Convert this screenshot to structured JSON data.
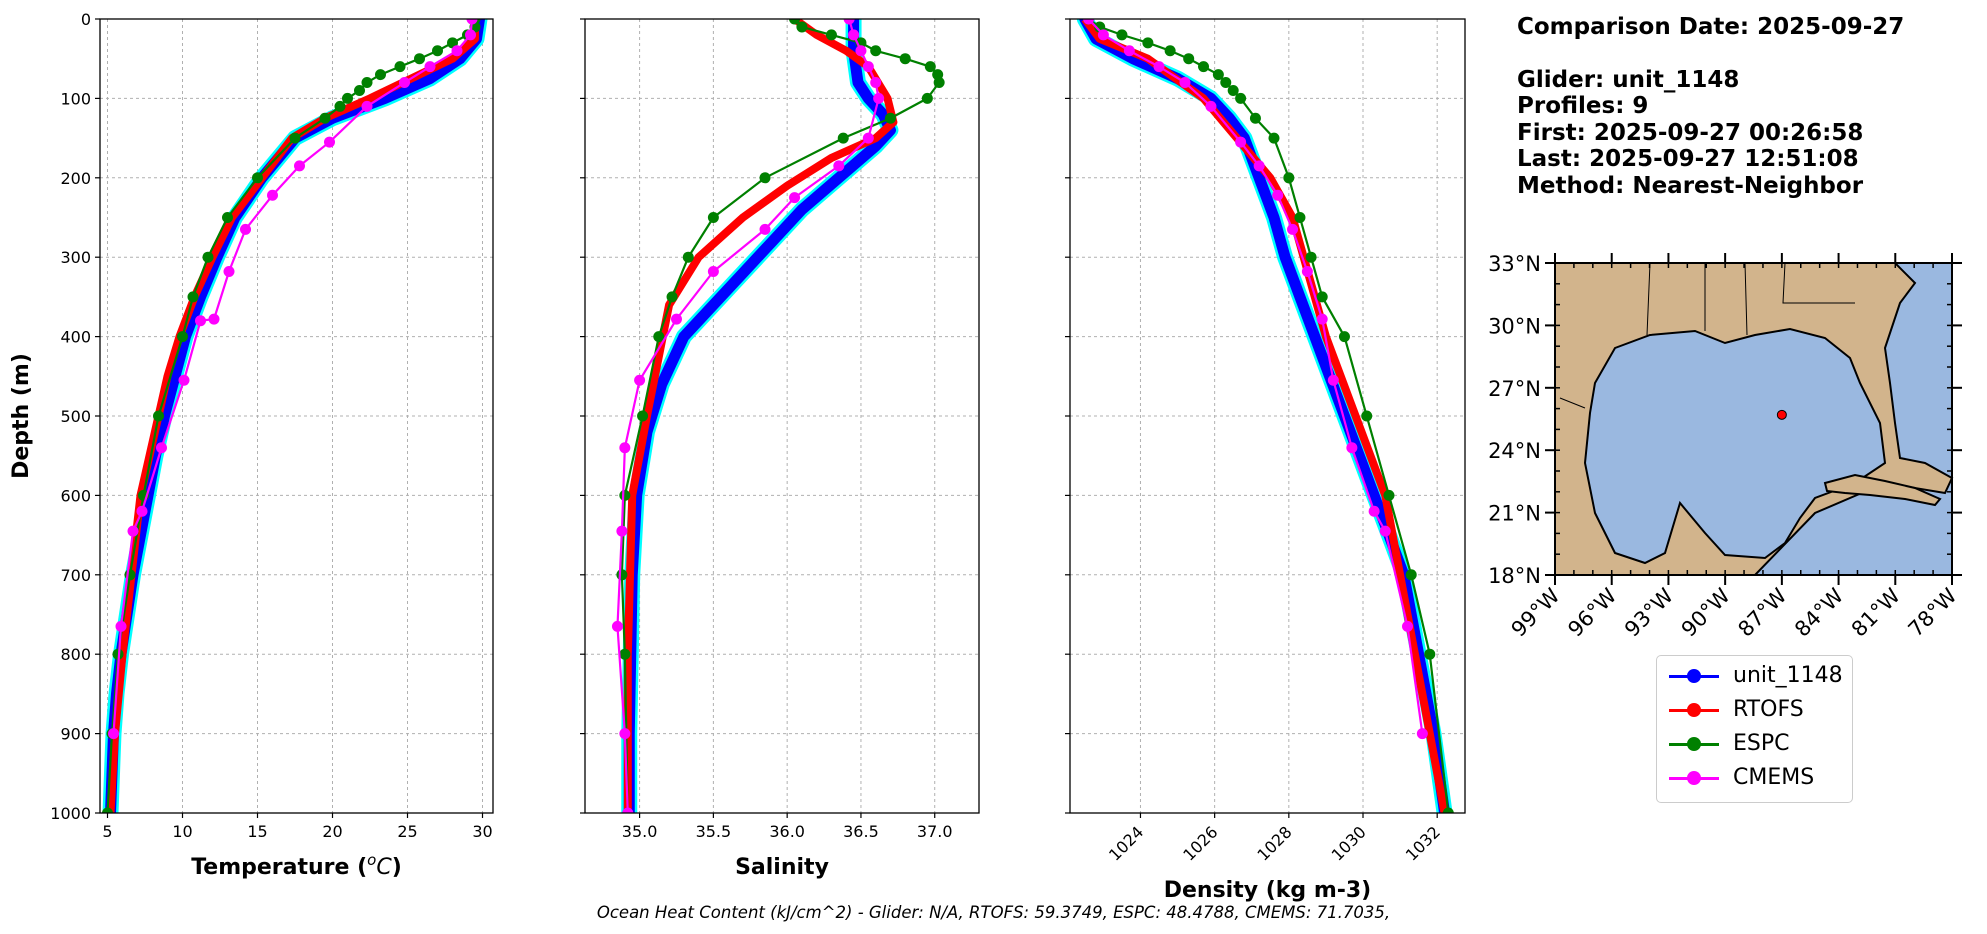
{
  "info": {
    "comparison_date": "Comparison Date: 2025-09-27",
    "glider": "Glider: unit_1148",
    "profiles": "Profiles: 9",
    "first": "First: 2025-09-27 00:26:58",
    "last": "Last: 2025-09-27 12:51:08",
    "method": "Method: Nearest-Neighbor"
  },
  "footer": "Ocean Heat Content (kJ/cm^2) - Glider: N/A,  RTOFS: 59.3749,  ESPC: 48.4788,  CMEMS: 71.7035,",
  "legend": [
    {
      "label": "unit_1148",
      "color": "#0000ff"
    },
    {
      "label": "RTOFS",
      "color": "#ff0000"
    },
    {
      "label": "ESPC",
      "color": "#008000"
    },
    {
      "label": "CMEMS",
      "color": "#ff00ff"
    }
  ],
  "colors": {
    "glider_shadow": "#00ffff",
    "land": "#d2b48c",
    "ocean": "#9ab8e0"
  },
  "chart_data": [
    {
      "type": "line",
      "xlabel": "Temperature (°C)",
      "ylabel": "Depth (m)",
      "ylim": [
        0,
        1000
      ],
      "xlim": [
        4.5,
        30.7
      ],
      "xticks": [
        5,
        10,
        15,
        20,
        25,
        30
      ],
      "yticks": [
        0,
        100,
        200,
        300,
        400,
        500,
        600,
        700,
        800,
        900,
        1000
      ],
      "y_inverted": true,
      "grid": true,
      "series": [
        {
          "name": "unit_1148",
          "x": [
            29.8,
            29.6,
            28.5,
            26.5,
            23.5,
            20,
            17.5,
            15.3,
            13.5,
            12.3,
            11.2,
            10.2,
            9.5,
            8.8,
            8.2,
            7.7,
            7.2,
            6.7,
            6.3,
            5.9,
            5.6,
            5.4,
            5.2
          ],
          "y": [
            0,
            25,
            50,
            75,
            100,
            125,
            150,
            200,
            250,
            300,
            350,
            400,
            450,
            500,
            550,
            600,
            650,
            700,
            750,
            800,
            850,
            900,
            1000
          ]
        },
        {
          "name": "RTOFS",
          "x": [
            29.5,
            29.5,
            28,
            22.5,
            19.5,
            17.3,
            15.3,
            13.3,
            12,
            10.8,
            9.8,
            9,
            8.4,
            7.8,
            7.2,
            6.6,
            6,
            5.5,
            5.2
          ],
          "y": [
            0,
            25,
            50,
            100,
            125,
            150,
            200,
            250,
            300,
            350,
            400,
            450,
            500,
            550,
            600,
            700,
            800,
            900,
            1000
          ]
        },
        {
          "name": "ESPC",
          "x": [
            29.5,
            29.5,
            29,
            28,
            27,
            25.8,
            24.5,
            23.2,
            22.3,
            21.8,
            21,
            20.5,
            19.5,
            17.5,
            15,
            13,
            11.7,
            10.7,
            10,
            8.4,
            7.4,
            6.5,
            5.7,
            5.3,
            5
          ],
          "y": [
            0,
            10,
            20,
            30,
            40,
            50,
            60,
            70,
            80,
            90,
            100,
            110,
            125,
            150,
            200,
            250,
            300,
            350,
            400,
            500,
            600,
            700,
            800,
            900,
            1000
          ]
        },
        {
          "name": "CMEMS",
          "x": [
            29.3,
            29.2,
            28.3,
            26.5,
            24.8,
            22.3,
            19.8,
            17.8,
            16,
            14.2,
            13.1,
            12.1,
            11.2,
            10.1,
            8.6,
            7.3,
            6.7,
            5.9,
            5.4
          ],
          "y": [
            0,
            20,
            40,
            60,
            80,
            110,
            155,
            185,
            222,
            265,
            318,
            378,
            380,
            455,
            540,
            620,
            645,
            765,
            900
          ]
        }
      ]
    },
    {
      "type": "line",
      "xlabel": "Salinity",
      "ylim": [
        0,
        1000
      ],
      "xlim": [
        34.63,
        37.3
      ],
      "xticks": [
        35.0,
        35.5,
        36.0,
        36.5,
        37.0
      ],
      "y_inverted": true,
      "grid": true,
      "series": [
        {
          "name": "unit_1148",
          "x": [
            36.45,
            36.45,
            36.48,
            36.55,
            36.65,
            36.7,
            36.6,
            36.35,
            36.1,
            35.9,
            35.7,
            35.5,
            35.3,
            35.15,
            35.05,
            34.98,
            34.95,
            34.94,
            34.93,
            34.93
          ],
          "y": [
            0,
            40,
            80,
            100,
            120,
            140,
            160,
            200,
            240,
            280,
            320,
            360,
            400,
            460,
            520,
            600,
            700,
            800,
            900,
            1000
          ]
        },
        {
          "name": "RTOFS",
          "x": [
            36.05,
            36.2,
            36.4,
            36.55,
            36.68,
            36.72,
            36.6,
            36.3,
            36.0,
            35.7,
            35.4,
            35.2,
            35.05,
            34.95,
            34.92,
            34.92
          ],
          "y": [
            0,
            20,
            40,
            60,
            100,
            130,
            150,
            175,
            210,
            250,
            300,
            360,
            500,
            600,
            800,
            1000
          ]
        },
        {
          "name": "ESPC",
          "x": [
            36.05,
            36.1,
            36.3,
            36.5,
            36.6,
            36.8,
            36.97,
            37.02,
            37.03,
            36.95,
            36.7,
            36.38,
            35.85,
            35.5,
            35.33,
            35.22,
            35.13,
            35.02,
            34.9,
            34.88,
            34.9,
            34.92
          ],
          "y": [
            0,
            10,
            20,
            30,
            40,
            50,
            60,
            70,
            80,
            100,
            125,
            150,
            200,
            250,
            300,
            350,
            400,
            500,
            600,
            700,
            800,
            1000
          ]
        },
        {
          "name": "CMEMS",
          "x": [
            36.42,
            36.45,
            36.5,
            36.55,
            36.6,
            36.62,
            36.55,
            36.35,
            36.05,
            35.85,
            35.5,
            35.25,
            35.0,
            34.9,
            34.88,
            34.85,
            34.9,
            34.92
          ],
          "y": [
            0,
            20,
            40,
            60,
            80,
            100,
            150,
            185,
            225,
            265,
            318,
            378,
            455,
            540,
            645,
            765,
            900,
            1000
          ]
        }
      ]
    },
    {
      "type": "line",
      "xlabel": "Density (kg m-3)",
      "ylim": [
        0,
        1000
      ],
      "xlim": [
        1022.1,
        1032.75
      ],
      "xticks": [
        1024,
        1026,
        1028,
        1030,
        1032
      ],
      "y_inverted": true,
      "grid": true,
      "series": [
        {
          "name": "unit_1148",
          "x": [
            1022.5,
            1022.8,
            1023.8,
            1025,
            1025.9,
            1026.4,
            1026.8,
            1027.2,
            1027.6,
            1027.9,
            1028.3,
            1028.7,
            1029.1,
            1029.5,
            1029.9,
            1030.3,
            1030.7,
            1031.1,
            1031.5,
            1031.9,
            1032.2
          ],
          "y": [
            0,
            25,
            50,
            75,
            100,
            125,
            150,
            200,
            250,
            300,
            350,
            400,
            450,
            500,
            550,
            600,
            650,
            700,
            800,
            900,
            1000
          ]
        },
        {
          "name": "RTOFS",
          "x": [
            1022.5,
            1022.9,
            1024.2,
            1025.7,
            1026.6,
            1027.5,
            1028.1,
            1028.4,
            1028.7,
            1029,
            1029.4,
            1029.8,
            1030.2,
            1030.6,
            1031,
            1031.4,
            1031.8,
            1032.2
          ],
          "y": [
            0,
            25,
            50,
            100,
            150,
            200,
            250,
            300,
            350,
            400,
            450,
            500,
            550,
            600,
            700,
            800,
            900,
            1000
          ]
        },
        {
          "name": "ESPC",
          "x": [
            1022.6,
            1022.9,
            1023.5,
            1024.2,
            1024.8,
            1025.3,
            1025.7,
            1026.1,
            1026.3,
            1026.5,
            1026.7,
            1027.1,
            1027.6,
            1028,
            1028.3,
            1028.6,
            1028.9,
            1029.5,
            1030.1,
            1030.7,
            1031.3,
            1031.8,
            1032.3
          ],
          "y": [
            0,
            10,
            20,
            30,
            40,
            50,
            60,
            70,
            80,
            90,
            100,
            125,
            150,
            200,
            250,
            300,
            350,
            400,
            500,
            600,
            700,
            800,
            1000
          ]
        },
        {
          "name": "CMEMS",
          "x": [
            1022.6,
            1023,
            1023.7,
            1024.5,
            1025.2,
            1025.9,
            1026.7,
            1027.2,
            1027.7,
            1028.1,
            1028.5,
            1028.9,
            1029.2,
            1029.7,
            1030.3,
            1030.6,
            1031.2,
            1031.6
          ],
          "y": [
            0,
            20,
            40,
            60,
            80,
            110,
            155,
            185,
            222,
            265,
            318,
            378,
            455,
            540,
            620,
            645,
            765,
            900
          ]
        }
      ]
    }
  ],
  "map": {
    "lat_ticks": [
      "33°N",
      "30°N",
      "27°N",
      "24°N",
      "21°N",
      "18°N"
    ],
    "lon_ticks": [
      "99°W",
      "96°W",
      "93°W",
      "90°W",
      "87°W",
      "84°W",
      "81°W",
      "78°W"
    ],
    "lon_range": [
      -99,
      -78
    ],
    "lat_range": [
      18,
      33
    ],
    "glider_position": {
      "lon": -87.0,
      "lat": 25.7
    }
  }
}
